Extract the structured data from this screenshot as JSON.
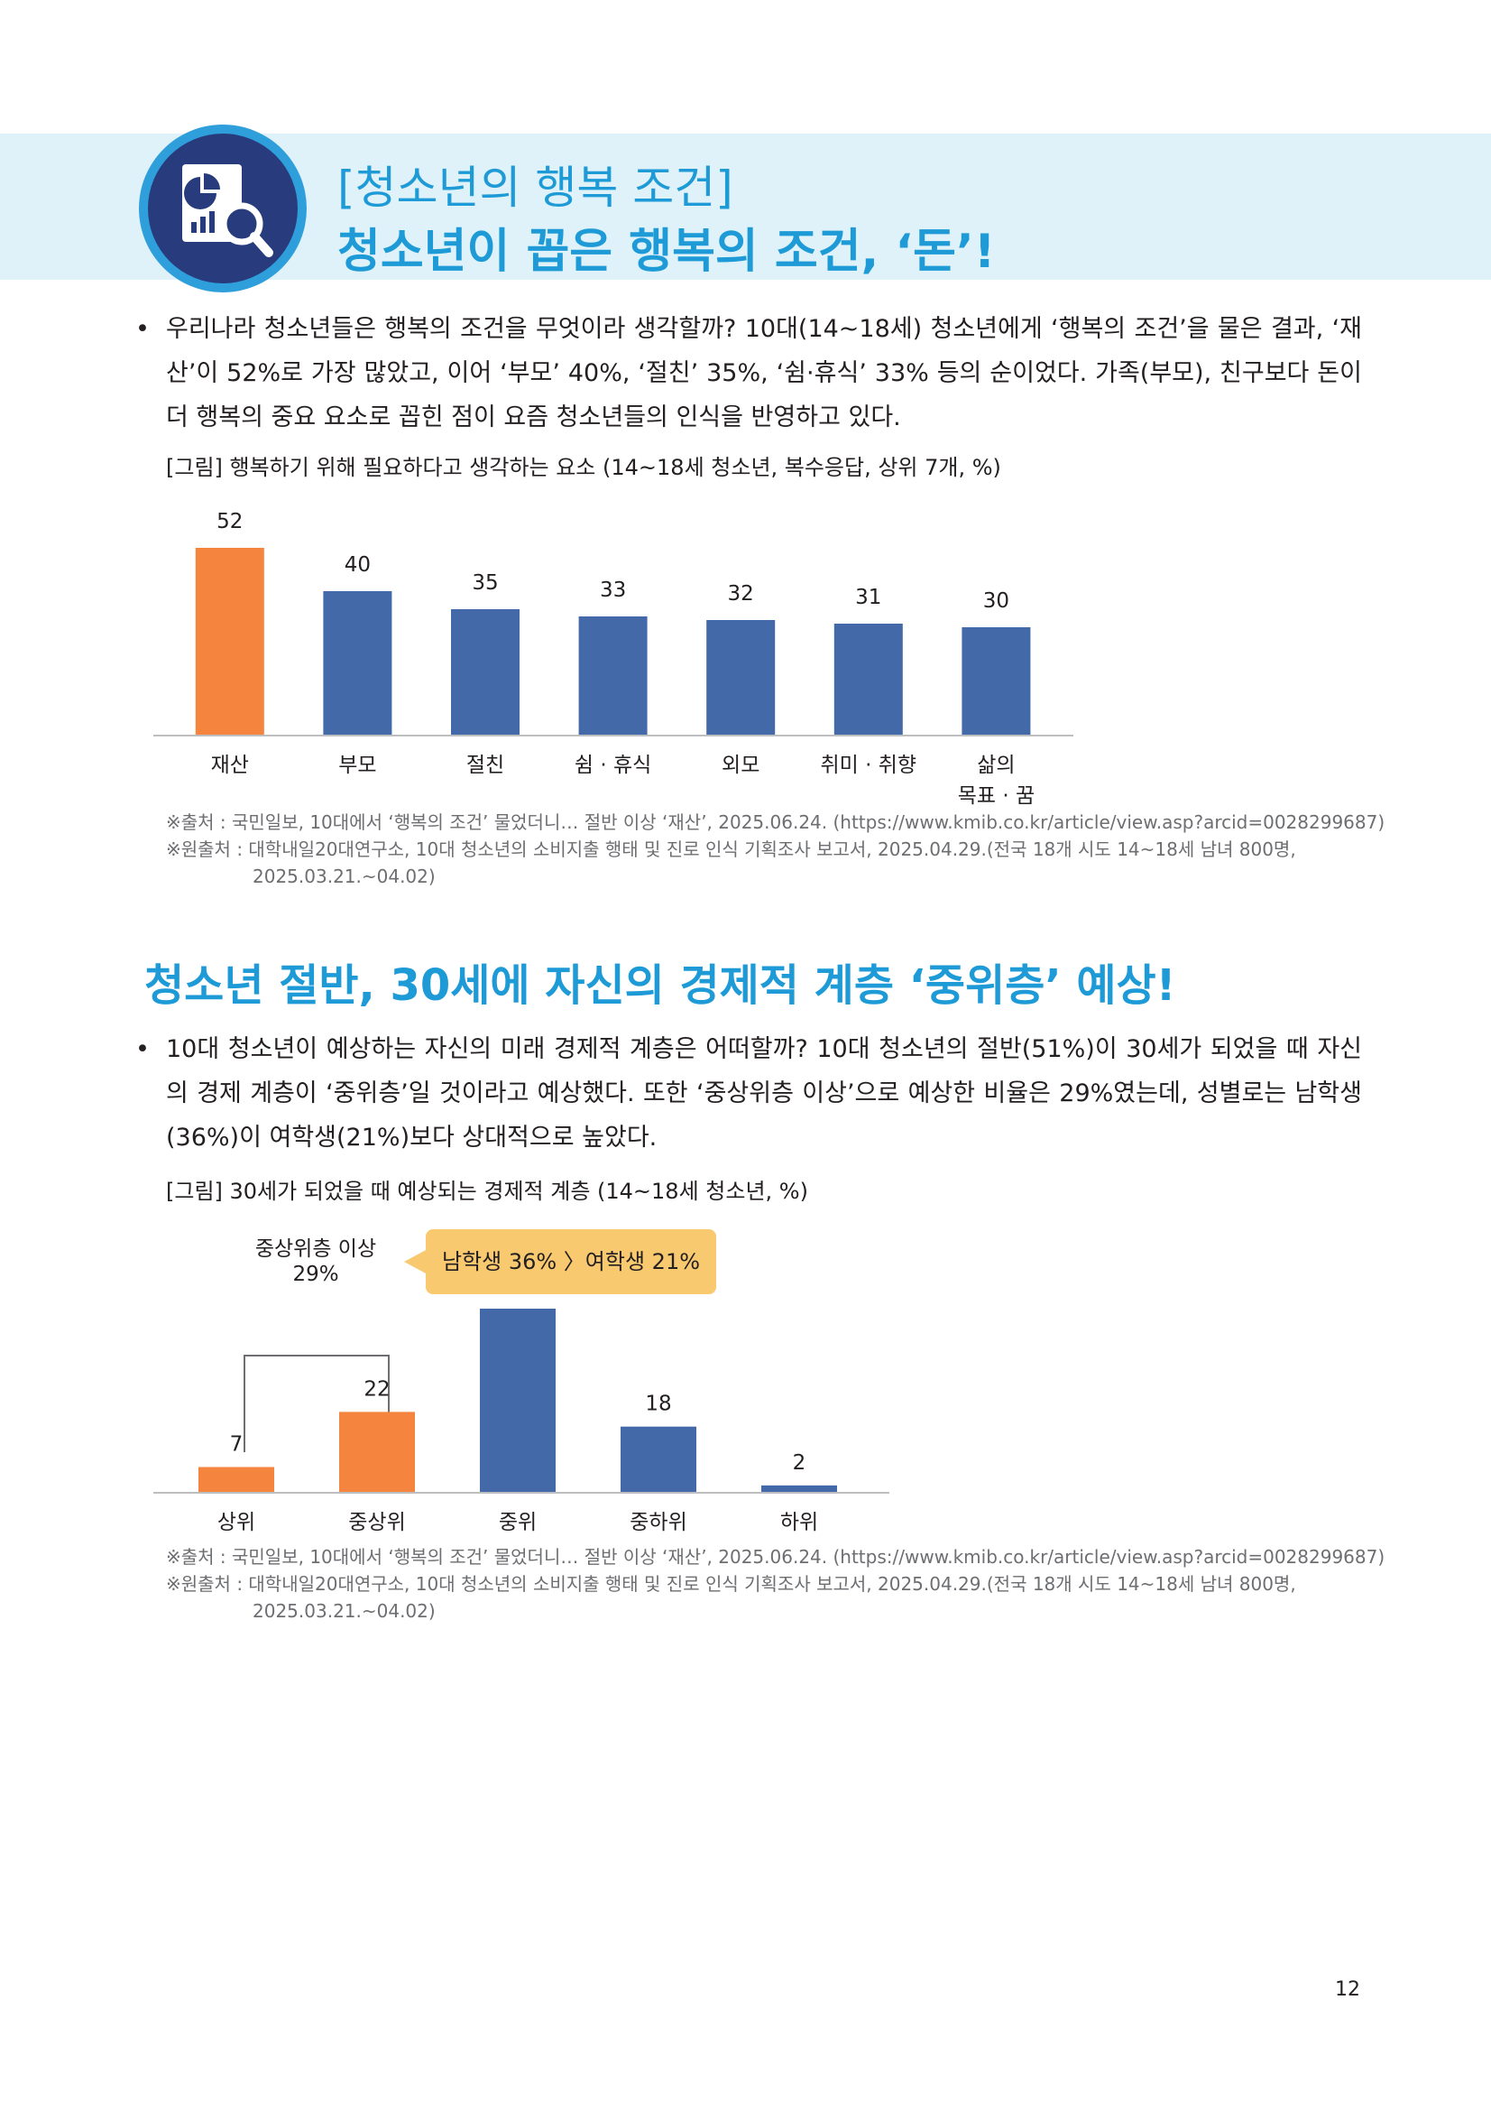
{
  "header": {
    "subtitle": "[청소년의 행복 조건]",
    "title": "청소년이 꼽은 행복의 조건, ‘돈’!"
  },
  "section1": {
    "bullet": "•",
    "paragraph": "우리나라 청소년들은 행복의 조건을 무엇이라 생각할까? 10대(14~18세) 청소년에게 ‘행복의 조건’을 물은 결과, ‘재산’이 52%로 가장 많았고, 이어 ‘부모’ 40%, ‘절친’ 35%, ‘쉼·휴식’ 33% 등의 순이었다. 가족(부모), 친구보다 돈이 더 행복의 중요 요소로 꼽힌 점이 요즘 청소년들의 인식을 반영하고 있다.",
    "caption": "[그림] 행복하기 위해 필요하다고 생각하는 요소 (14~18세 청소년, 복수응답, 상위 7개, %)",
    "source_line1": "※출처 : 국민일보, 10대에서 ‘행복의 조건’ 물었더니… 절반 이상 ‘재산’, 2025.06.24. (https://www.kmib.co.kr/article/view.asp?arcid=0028299687)",
    "source_line2": "※원출처 : 대학내일20대연구소, 10대 청소년의 소비지출 행태 및 진로 인식 기획조사 보고서, 2025.04.29.(전국 18개 시도 14~18세 남녀 800명,",
    "source_line3": "2025.03.21.~04.02)"
  },
  "section2": {
    "title": "청소년 절반, 30세에 자신의 경제적 계층 ‘중위층’ 예상!",
    "bullet": "•",
    "paragraph": "10대 청소년이 예상하는 자신의 미래 경제적 계층은 어떠할까? 10대 청소년의 절반(51%)이 30세가 되었을 때 자신의 경제 계층이 ‘중위층’일 것이라고 예상했다. 또한 ‘중상위층 이상’으로 예상한 비율은 29%였는데, 성별로는 남학생(36%)이 여학생(21%)보다 상대적으로 높았다.",
    "caption": "[그림] 30세가 되었을 때 예상되는 경제적 계층 (14~18세 청소년, %)",
    "annotation_line1": "중상위층 이상",
    "annotation_line2": "29%",
    "callout": "남학생 36% 〉여학생 21%",
    "source_line1": "※출처 : 국민일보, 10대에서 ‘행복의 조건’ 물었더니… 절반 이상 ‘재산’, 2025.06.24. (https://www.kmib.co.kr/article/view.asp?arcid=0028299687)",
    "source_line2": "※원출처 : 대학내일20대연구소, 10대 청소년의 소비지출 행태 및 진로 인식 기획조사 보고서, 2025.04.29.(전국 18개 시도 14~18세 남녀 800명,",
    "source_line3": "2025.03.21.~04.02)"
  },
  "page_number": "12",
  "colors": {
    "accent": "#1e9bd7",
    "bar_blue": "#4369a8",
    "bar_orange": "#f5843f",
    "band": "#dff2f9",
    "callout": "#f9c96f"
  },
  "chart_data": [
    {
      "type": "bar",
      "title": "[그림] 행복하기 위해 필요하다고 생각하는 요소 (14~18세 청소년, 복수응답, 상위 7개, %)",
      "categories": [
        [
          "재산"
        ],
        [
          "부모"
        ],
        [
          "절친"
        ],
        [
          "쉼 · 휴식"
        ],
        [
          "외모"
        ],
        [
          "취미 · 취향"
        ],
        [
          "삶의",
          "목표 · 꿈"
        ]
      ],
      "values": [
        52,
        40,
        35,
        33,
        32,
        31,
        30
      ],
      "colors": [
        "#f5843f",
        "#4369a8",
        "#4369a8",
        "#4369a8",
        "#4369a8",
        "#4369a8",
        "#4369a8"
      ],
      "ylim": [
        0,
        55
      ],
      "grid": false,
      "data_labels": true
    },
    {
      "type": "bar",
      "title": "[그림] 30세가 되었을 때 예상되는 경제적 계층 (14~18세 청소년, %)",
      "categories": [
        [
          "상위"
        ],
        [
          "중상위"
        ],
        [
          "중위"
        ],
        [
          "중하위"
        ],
        [
          "하위"
        ]
      ],
      "values": [
        7,
        22,
        51,
        18,
        2
      ],
      "colors": [
        "#f5843f",
        "#f5843f",
        "#4369a8",
        "#4369a8",
        "#4369a8"
      ],
      "ylim": [
        0,
        55
      ],
      "grid": false,
      "data_labels": true
    }
  ]
}
